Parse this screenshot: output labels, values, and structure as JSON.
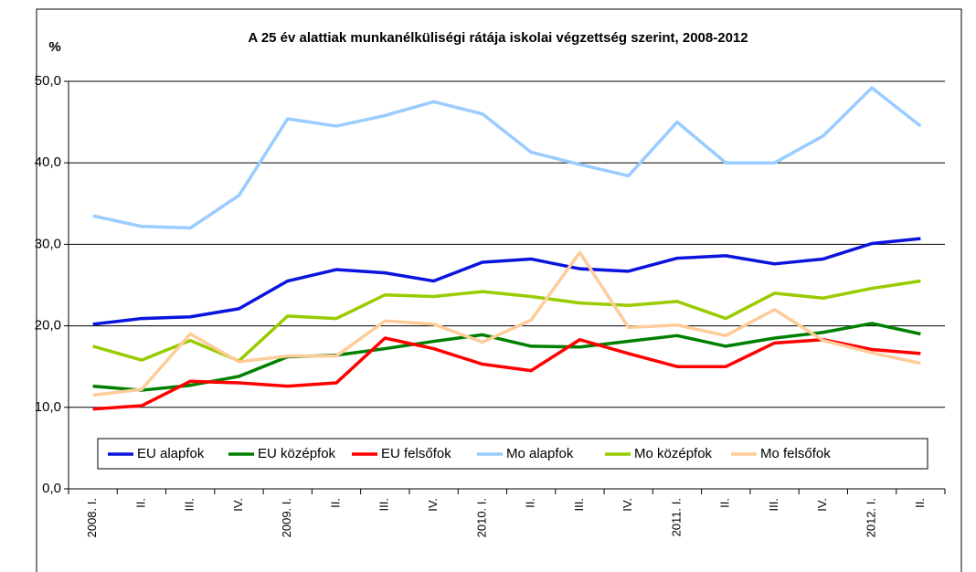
{
  "chart_data": {
    "type": "line",
    "title": "A 25 év alattiak munkanélküliségi rátája iskolai végzettség szerint, 2008-2012",
    "ylabel": "%",
    "categories": [
      "2008. I.",
      "II.",
      "III.",
      "IV.",
      "2009. I.",
      "II.",
      "III.",
      "IV.",
      "2010. I.",
      "II.",
      "III.",
      "IV.",
      "2011. I.",
      "II.",
      "III.",
      "IV.",
      "2012. I.",
      "II."
    ],
    "series": [
      {
        "name": "EU alapfok",
        "color": "#0a14dc",
        "values": [
          20.2,
          20.9,
          21.1,
          22.1,
          25.5,
          26.9,
          26.5,
          25.5,
          27.8,
          28.2,
          27.0,
          26.7,
          28.3,
          28.6,
          27.6,
          28.2,
          30.1,
          30.7
        ]
      },
      {
        "name": "EU középfok",
        "color": "#008000",
        "values": [
          12.6,
          12.1,
          12.7,
          13.8,
          16.2,
          16.4,
          17.2,
          18.1,
          18.9,
          17.5,
          17.4,
          18.1,
          18.8,
          17.5,
          18.5,
          19.2,
          20.3,
          19.0
        ]
      },
      {
        "name": "EU felsőfok",
        "color": "#ff0000",
        "values": [
          9.8,
          10.2,
          13.2,
          13.0,
          12.6,
          13.0,
          18.5,
          17.2,
          15.3,
          14.5,
          18.3,
          16.6,
          15.0,
          15.0,
          17.9,
          18.3,
          17.1,
          16.6
        ]
      },
      {
        "name": "Mo alapfok",
        "color": "#99ccff",
        "values": [
          33.5,
          32.2,
          32.0,
          36.0,
          45.4,
          44.5,
          45.8,
          47.5,
          46.0,
          41.3,
          39.8,
          38.4,
          45.0,
          40.0,
          40.0,
          43.3,
          49.2,
          44.5
        ]
      },
      {
        "name": "Mo középfok",
        "color": "#99cc00",
        "values": [
          17.5,
          15.8,
          18.2,
          15.7,
          21.2,
          20.9,
          23.8,
          23.6,
          24.2,
          23.6,
          22.8,
          22.5,
          23.0,
          20.9,
          24.0,
          23.4,
          24.6,
          25.5
        ]
      },
      {
        "name": "Mo felsőfok",
        "color": "#ffcc99",
        "values": [
          11.5,
          12.2,
          19.0,
          15.6,
          16.3,
          16.3,
          20.6,
          20.2,
          18.0,
          20.7,
          29.0,
          19.8,
          20.1,
          18.8,
          22.0,
          18.2,
          16.7,
          15.4
        ]
      }
    ],
    "ylim": [
      0,
      50
    ],
    "yticks": [
      {
        "value": 0,
        "label": "0,0"
      },
      {
        "value": 10,
        "label": "10,0"
      },
      {
        "value": 20,
        "label": "20,0"
      },
      {
        "value": 30,
        "label": "30,0"
      },
      {
        "value": 40,
        "label": "40,0"
      },
      {
        "value": 50,
        "label": "50,0"
      }
    ],
    "grid": true
  }
}
